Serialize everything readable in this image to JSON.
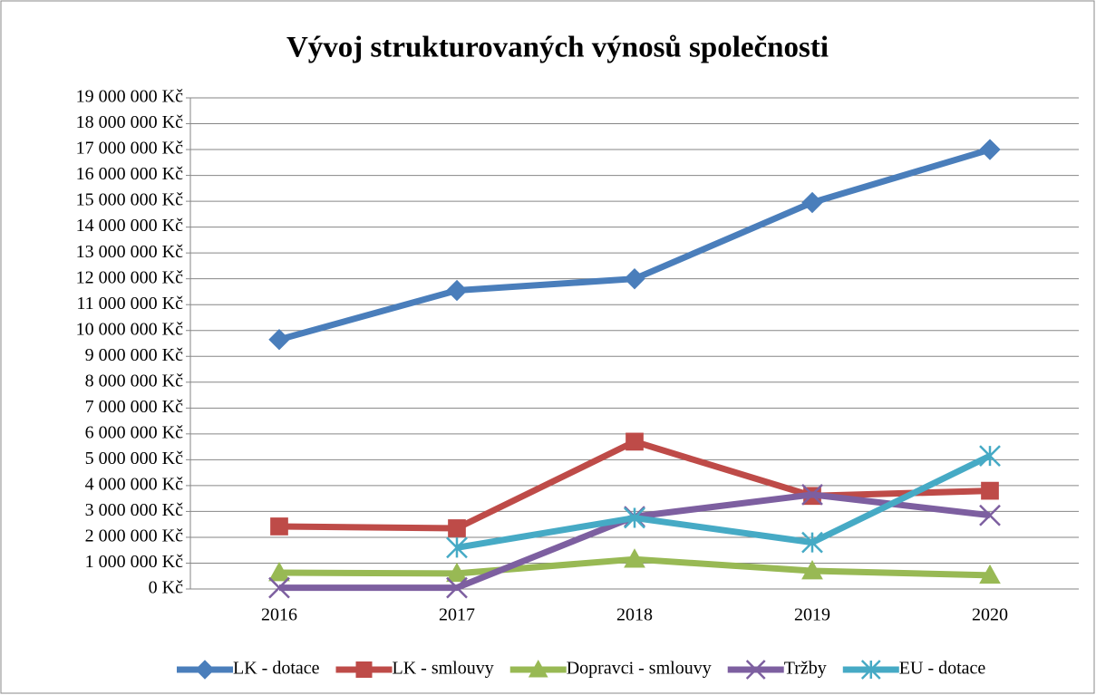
{
  "chart_data": {
    "type": "line",
    "title": "Vývoj strukturovaných výnosů společnosti",
    "categories": [
      "2016",
      "2017",
      "2018",
      "2019",
      "2020"
    ],
    "series": [
      {
        "name": "LK - dotace",
        "color": "#4a7ebb",
        "marker": "diamond",
        "values": [
          9650000,
          11550000,
          12000000,
          14950000,
          17000000
        ]
      },
      {
        "name": "LK - smlouvy",
        "color": "#be4b48",
        "marker": "square",
        "values": [
          2420000,
          2350000,
          5700000,
          3600000,
          3800000
        ]
      },
      {
        "name": "Dopravci - smlouvy",
        "color": "#98b954",
        "marker": "triangle",
        "values": [
          630000,
          600000,
          1150000,
          700000,
          530000
        ]
      },
      {
        "name": "Tržby",
        "color": "#7d5fa0",
        "marker": "x",
        "values": [
          50000,
          50000,
          2800000,
          3650000,
          2850000
        ]
      },
      {
        "name": "EU - dotace",
        "color": "#46aac5",
        "marker": "star",
        "values": [
          null,
          1600000,
          2750000,
          1800000,
          5150000
        ]
      }
    ],
    "ylim": [
      0,
      19000000
    ],
    "yticks": [
      {
        "value": 0,
        "label": "0 Kč"
      },
      {
        "value": 1000000,
        "label": "1 000 000 Kč"
      },
      {
        "value": 2000000,
        "label": "2 000 000 Kč"
      },
      {
        "value": 3000000,
        "label": "3 000 000 Kč"
      },
      {
        "value": 4000000,
        "label": "4 000 000 Kč"
      },
      {
        "value": 5000000,
        "label": "5 000 000 Kč"
      },
      {
        "value": 6000000,
        "label": "6 000 000 Kč"
      },
      {
        "value": 7000000,
        "label": "7 000 000 Kč"
      },
      {
        "value": 8000000,
        "label": "8 000 000 Kč"
      },
      {
        "value": 9000000,
        "label": "9 000 000 Kč"
      },
      {
        "value": 10000000,
        "label": "10 000 000 Kč"
      },
      {
        "value": 11000000,
        "label": "11 000 000 Kč"
      },
      {
        "value": 12000000,
        "label": "12 000 000 Kč"
      },
      {
        "value": 13000000,
        "label": "13 000 000 Kč"
      },
      {
        "value": 14000000,
        "label": "14 000 000 Kč"
      },
      {
        "value": 15000000,
        "label": "15 000 000 Kč"
      },
      {
        "value": 16000000,
        "label": "16 000 000 Kč"
      },
      {
        "value": 17000000,
        "label": "17 000 000 Kč"
      },
      {
        "value": 18000000,
        "label": "18 000 000 Kč"
      },
      {
        "value": 19000000,
        "label": "19 000 000 Kč"
      }
    ],
    "grid": true,
    "legend": "bottom"
  }
}
